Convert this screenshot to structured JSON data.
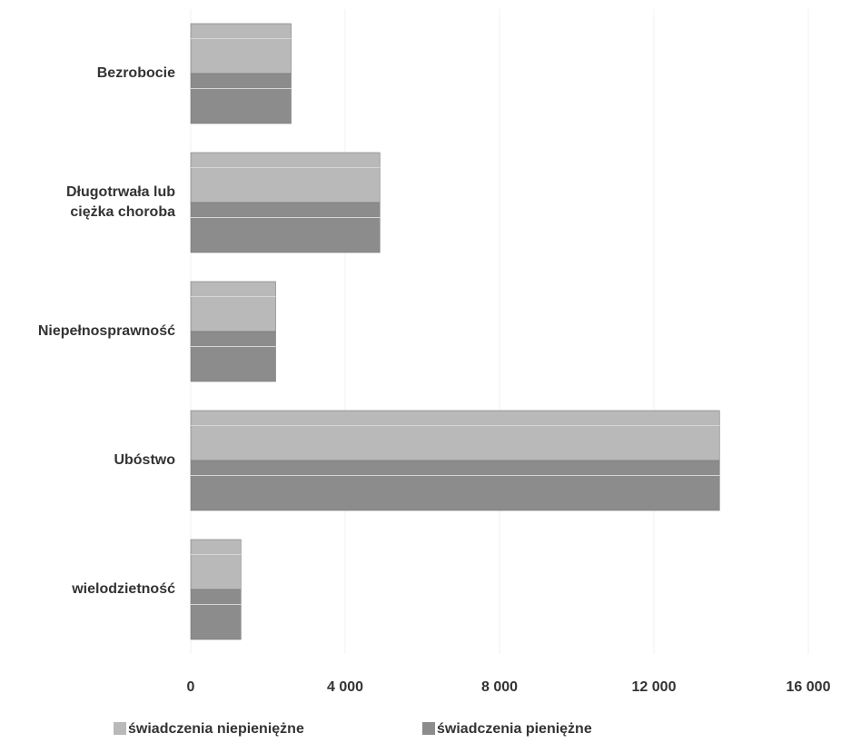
{
  "chart_data": {
    "type": "hbar",
    "categories": [
      "Bezrobocie",
      "Długotrwała lub ciężka choroba",
      "Niepełnosprawność",
      "Ubóstwo",
      "wielodzietność"
    ],
    "series": [
      {
        "name": "świadczenia niepieniężne",
        "color": "#b9b9b9",
        "values": [
          2600,
          4900,
          2200,
          13700,
          1300
        ]
      },
      {
        "name": "świadczenia pieniężne",
        "color": "#8c8c8c",
        "values": [
          2600,
          4900,
          2200,
          13700,
          1300
        ]
      }
    ],
    "xlim": [
      0,
      16000
    ],
    "xticks": [
      0,
      {
        "value": 4000,
        "label": "4 000"
      },
      {
        "value": 8000,
        "label": "8 000"
      },
      {
        "value": 12000,
        "label": "12 000"
      },
      {
        "value": 16000,
        "label": "16 000"
      }
    ],
    "grid": true
  }
}
